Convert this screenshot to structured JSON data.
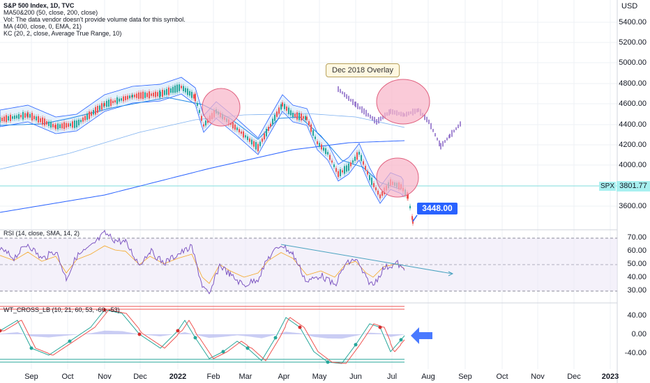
{
  "legend": {
    "title": "S&P 500 Index, 1D, TVC",
    "lines": [
      "MA50&200 (50, close, 200, close)",
      "Vol: The data vendor doesn't provide volume data for this symbol.",
      "MA (400, close, 0, EMA, 21)",
      "KC (20, 2, close, Average True Range, 10)"
    ]
  },
  "rsi_legend": "RSI (14, close, SMA, 14, 2)",
  "wt_legend": "WT_CROSS_LB (10, 21, 60, 53, -60, -53)",
  "currency": "USD",
  "price_axis": [
    "5400.00",
    "5200.00",
    "5000.00",
    "4800.00",
    "4600.00",
    "4400.00",
    "4200.00",
    "4000.00",
    "3800.00",
    "3600.00"
  ],
  "rsi_axis": [
    "70.00",
    "60.00",
    "50.00",
    "40.00",
    "30.00"
  ],
  "wt_axis": [
    "40.00",
    "0.00",
    "-40.00"
  ],
  "date_axis": [
    {
      "label": "Sep",
      "bold": false
    },
    {
      "label": "Oct",
      "bold": false
    },
    {
      "label": "Nov",
      "bold": false
    },
    {
      "label": "Dec",
      "bold": false
    },
    {
      "label": "2022",
      "bold": true
    },
    {
      "label": "Feb",
      "bold": false
    },
    {
      "label": "Mar",
      "bold": false
    },
    {
      "label": "Apr",
      "bold": false
    },
    {
      "label": "May",
      "bold": false
    },
    {
      "label": "Jun",
      "bold": false
    },
    {
      "label": "Jul",
      "bold": false
    },
    {
      "label": "Aug",
      "bold": false
    },
    {
      "label": "Sep",
      "bold": false
    },
    {
      "label": "Oct",
      "bold": false
    },
    {
      "label": "Nov",
      "bold": false
    },
    {
      "label": "Dec",
      "bold": false
    },
    {
      "label": "2023",
      "bold": true
    }
  ],
  "symbol": "SPX",
  "last_price": "3801.77",
  "overlay_label": "Dec 2018 Overlay",
  "target_price": "3448.00",
  "colors": {
    "up": "#26a69a",
    "down": "#ef5350",
    "overlay": "#8e6cc8",
    "rsi": "#7e57c2",
    "kc_fill": "#d4e8fb",
    "highlight": "#f8b4c8",
    "arrow": "#2962ff"
  }
}
